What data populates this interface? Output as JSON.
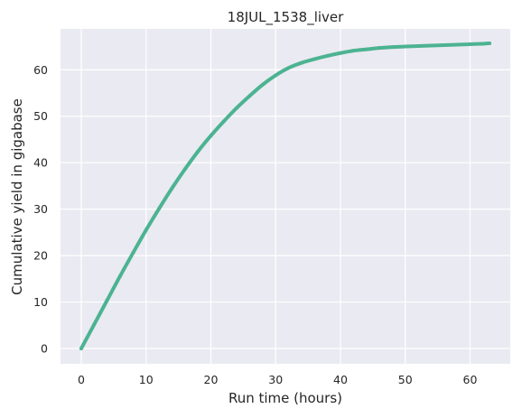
{
  "chart_data": {
    "type": "line",
    "title": "18JUL_1538_liver",
    "xlabel": "Run time (hours)",
    "ylabel": "Cumulative yield in gigabase",
    "xlim": [
      -3.2,
      66.2
    ],
    "ylim": [
      -3.3,
      68.8
    ],
    "xticks": [
      0,
      10,
      20,
      30,
      40,
      50,
      60
    ],
    "yticks": [
      0,
      10,
      20,
      30,
      40,
      50,
      60
    ],
    "grid": true,
    "background": "#eaeaf2",
    "series": [
      {
        "color": "#4cb391",
        "x": [
          0,
          2,
          4,
          6,
          8,
          10,
          12,
          14,
          16,
          18,
          20,
          22,
          24,
          26,
          28,
          30,
          32,
          34,
          36,
          38,
          40,
          42,
          44,
          46,
          48,
          50,
          52,
          54,
          56,
          58,
          60,
          62,
          63
        ],
        "y": [
          0,
          5.2,
          10.4,
          15.6,
          20.6,
          25.5,
          30.1,
          34.5,
          38.6,
          42.4,
          45.8,
          48.9,
          51.8,
          54.4,
          56.8,
          58.8,
          60.4,
          61.5,
          62.3,
          63.0,
          63.6,
          64.1,
          64.4,
          64.7,
          64.9,
          65.0,
          65.1,
          65.2,
          65.3,
          65.4,
          65.5,
          65.6,
          65.7
        ]
      }
    ]
  }
}
